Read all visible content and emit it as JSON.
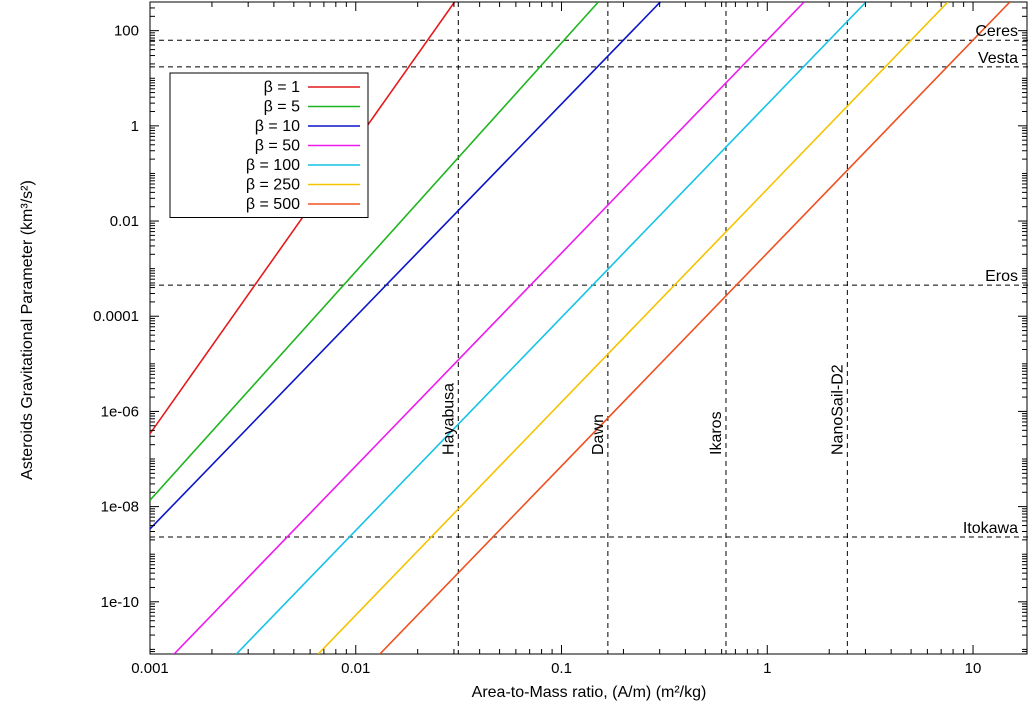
{
  "chart_data": {
    "type": "line",
    "title": "",
    "xlabel": "Area-to-Mass ratio, (A/m) (m²/kg)",
    "ylabel": "Asteroids Gravitational Parameter (km³/s²)",
    "x_scale": "log",
    "y_scale": "log",
    "xlim": [
      0.001,
      18.5
    ],
    "ylim": [
      8e-12,
      400
    ],
    "grid": false,
    "legend_position": "top-left",
    "x_ticks": [
      {
        "value": 0.001,
        "label": "0.001"
      },
      {
        "value": 0.01,
        "label": "0.01"
      },
      {
        "value": 0.1,
        "label": "0.1"
      },
      {
        "value": 1,
        "label": "1"
      },
      {
        "value": 10,
        "label": "10"
      }
    ],
    "y_ticks": [
      {
        "value": 1e-10,
        "label": "1e-10"
      },
      {
        "value": 1e-08,
        "label": "1e-08"
      },
      {
        "value": 1e-06,
        "label": "1e-06"
      },
      {
        "value": 0.0001,
        "label": "0.0001"
      },
      {
        "value": 0.01,
        "label": "0.01"
      },
      {
        "value": 1,
        "label": "1"
      },
      {
        "value": 100,
        "label": "100"
      }
    ],
    "series": [
      {
        "name": "β = 1",
        "beta": 1,
        "color": "#e41a1c",
        "x": [
          0.001,
          0.0302
        ],
        "y": [
          3.4e-07,
          400
        ]
      },
      {
        "name": "β = 5",
        "beta": 5,
        "color": "#1fb51f",
        "x": [
          0.001,
          0.151
        ],
        "y": [
          1.36e-08,
          400
        ]
      },
      {
        "name": "β = 10",
        "beta": 10,
        "color": "#0a14c8",
        "x": [
          0.001,
          0.302
        ],
        "y": [
          3.4e-09,
          400
        ]
      },
      {
        "name": "β = 50",
        "beta": 50,
        "color": "#ee1aee",
        "x": [
          0.00131,
          1.51
        ],
        "y": [
          8e-12,
          400
        ]
      },
      {
        "name": "β = 100",
        "beta": 100,
        "color": "#14c3e6",
        "x": [
          0.00263,
          3.02
        ],
        "y": [
          8e-12,
          400
        ]
      },
      {
        "name": "β = 250",
        "beta": 250,
        "color": "#f5c300",
        "x": [
          0.00657,
          7.55
        ],
        "y": [
          8e-12,
          400
        ]
      },
      {
        "name": "β = 500",
        "beta": 500,
        "color": "#f0501e",
        "x": [
          0.0131,
          15.1
        ],
        "y": [
          8e-12,
          400
        ]
      }
    ],
    "reference_lines_x": [
      {
        "label": "Hayabusa",
        "value": 0.0315
      },
      {
        "label": "Dawn",
        "value": 0.168
      },
      {
        "label": "Ikaros",
        "value": 0.63
      },
      {
        "label": "NanoSail-D2",
        "value": 2.45
      }
    ],
    "reference_lines_y": [
      {
        "label": "Ceres",
        "value": 63
      },
      {
        "label": "Vesta",
        "value": 17.3
      },
      {
        "label": "Eros",
        "value": 0.00045
      },
      {
        "label": "Itokawa",
        "value": 2.3e-09
      }
    ]
  }
}
